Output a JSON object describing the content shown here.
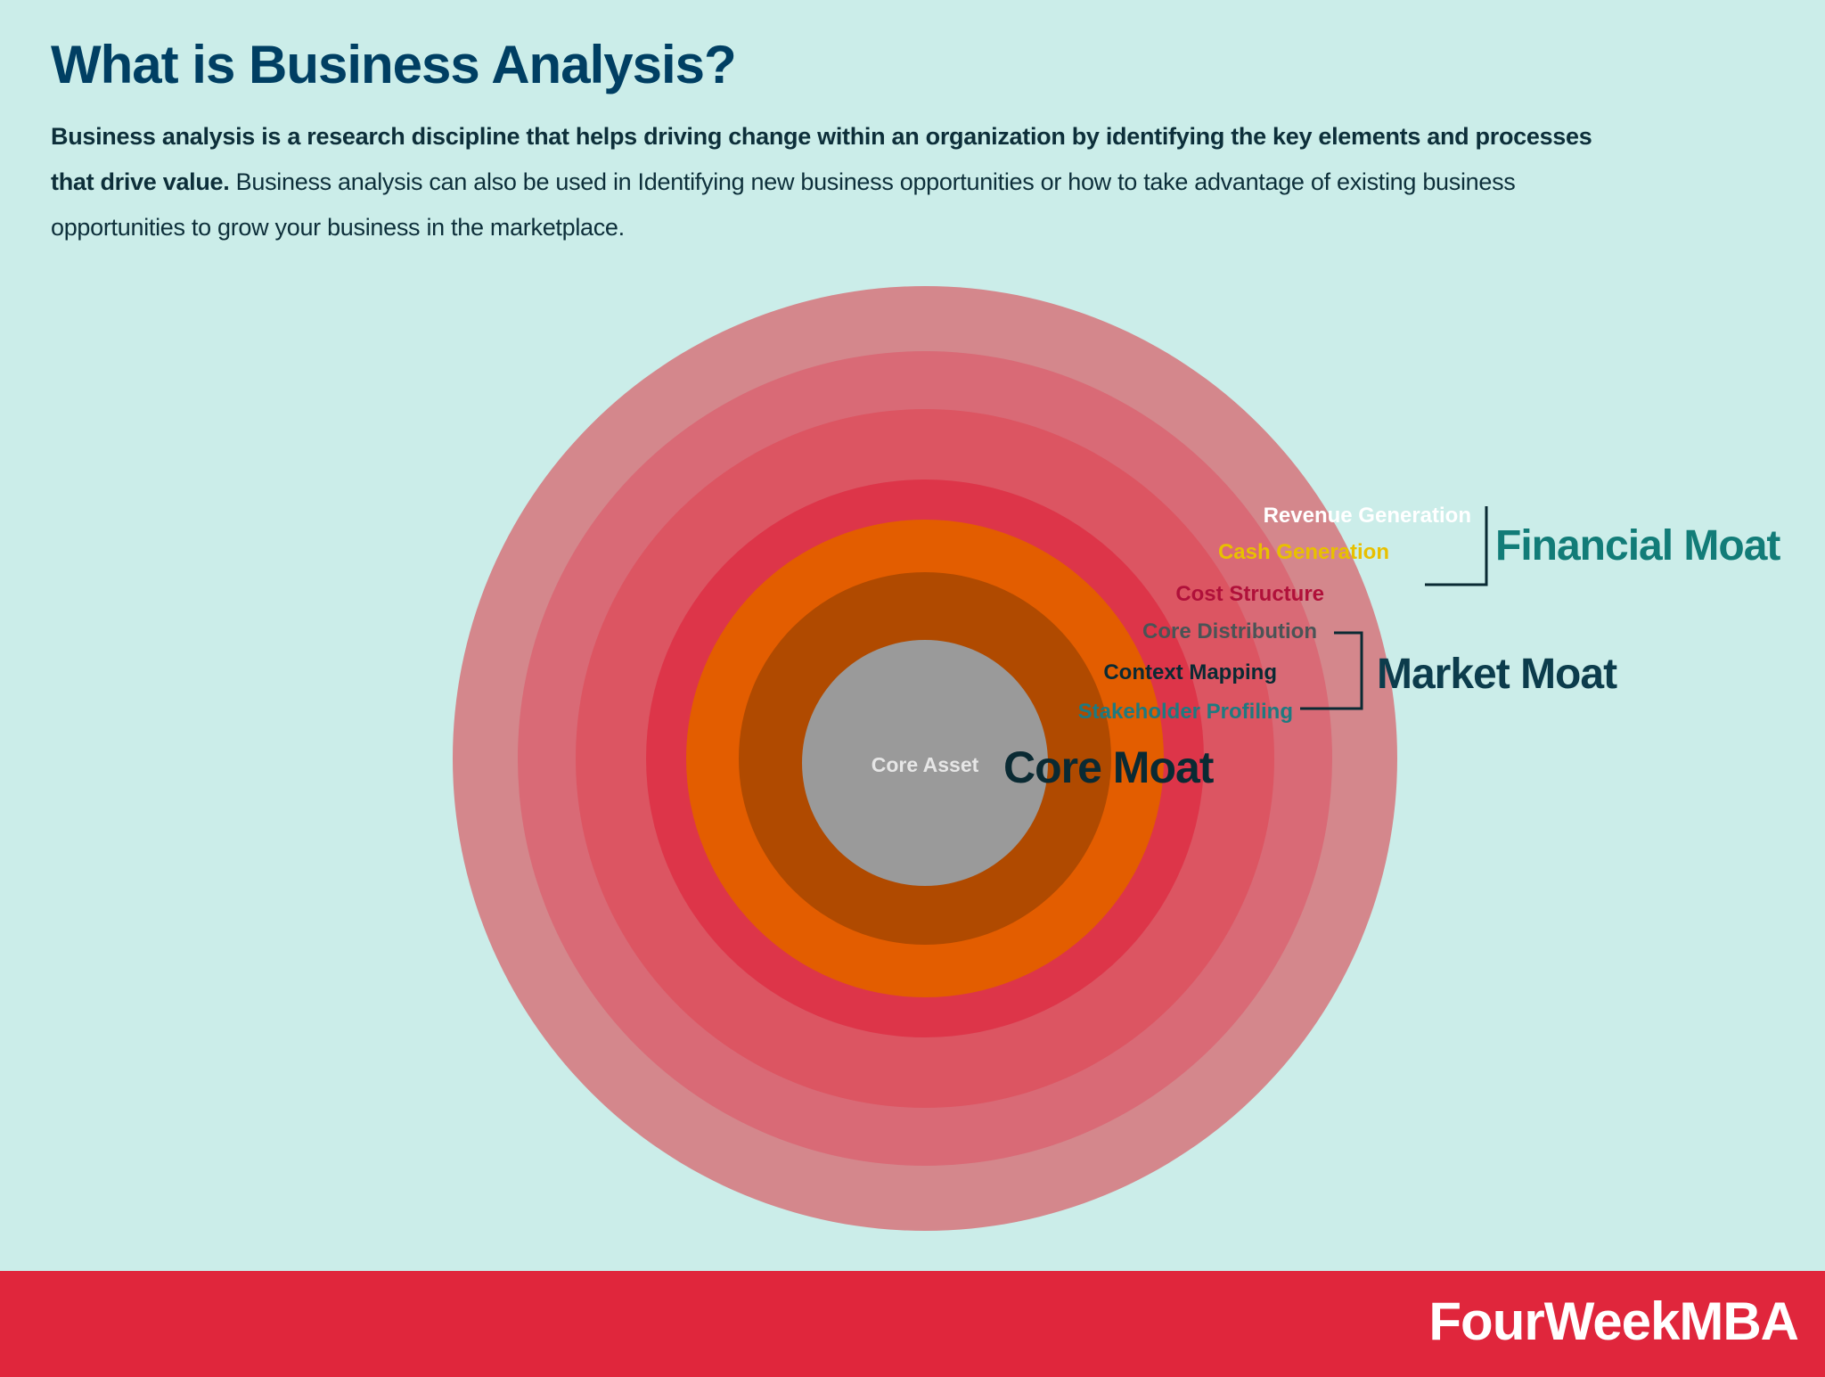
{
  "header": {
    "title": "What is Business Analysis?",
    "description_bold": "Business analysis is a research discipline that helps driving change within an organization by identifying the key elements and processes that drive value.",
    "description_rest": " Business analysis can also be used in Identifying new business opportunities or how to take advantage of existing business opportunities to grow your business in the marketplace."
  },
  "diagram": {
    "rings": [
      {
        "color": "#d4878c"
      },
      {
        "color": "#d96a76"
      },
      {
        "color": "#dc5562"
      },
      {
        "color": "#dd3549"
      },
      {
        "color": "#e35d00"
      },
      {
        "color": "#b04a00"
      },
      {
        "color": "#9a9a9a"
      }
    ],
    "core_asset": {
      "label": "Core Asset",
      "color": "#e6e6e6"
    },
    "layers": [
      {
        "label": "Revenue Generation",
        "color": "#ffffff"
      },
      {
        "label": "Cash Generation",
        "color": "#e8c000"
      },
      {
        "label": "Cost Structure",
        "color": "#b0103a"
      },
      {
        "label": "Core Distribution",
        "color": "#4a5456"
      },
      {
        "label": "Context Mapping",
        "color": "#0a2a33"
      },
      {
        "label": "Stakeholder Profiling",
        "color": "#1e7a80"
      }
    ],
    "groups": {
      "financial": {
        "label": "Financial Moat",
        "color": "#127c78"
      },
      "market": {
        "label": "Market Moat",
        "color": "#0c3c4c"
      },
      "core": {
        "label": "Core Moat",
        "color": "#0a2a33"
      }
    }
  },
  "footer": {
    "brand": "FourWeekMBA",
    "color": "#e0263c"
  }
}
